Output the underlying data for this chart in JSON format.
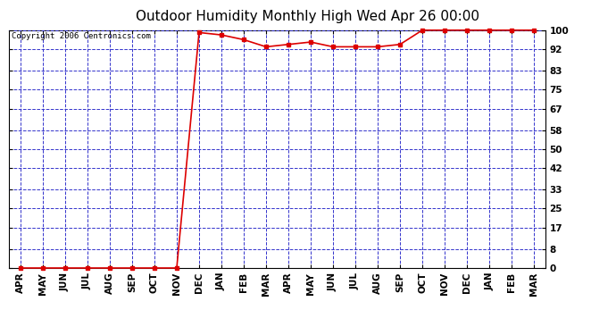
{
  "title": "Outdoor Humidity Monthly High Wed Apr 26 00:00",
  "copyright": "Copyright 2006 Centronics.com",
  "x_labels": [
    "APR",
    "MAY",
    "JUN",
    "JUL",
    "AUG",
    "SEP",
    "OCT",
    "NOV",
    "DEC",
    "JAN",
    "FEB",
    "MAR",
    "APR",
    "MAY",
    "JUN",
    "JUL",
    "AUG",
    "SEP",
    "OCT",
    "NOV",
    "DEC",
    "JAN",
    "FEB",
    "MAR"
  ],
  "y_values": [
    0,
    0,
    0,
    0,
    0,
    0,
    0,
    0,
    99,
    98,
    96,
    93,
    94,
    95,
    93,
    93,
    93,
    94,
    100,
    100,
    100,
    100,
    100,
    100
  ],
  "y_ticks": [
    0,
    8,
    17,
    25,
    33,
    42,
    50,
    58,
    67,
    75,
    83,
    92,
    100
  ],
  "ylim": [
    0,
    100
  ],
  "line_color": "#dd0000",
  "marker_color": "#dd0000",
  "grid_color": "#3333cc",
  "bg_color": "#ffffff",
  "fig_bg_color": "#ffffff",
  "outer_border_color": "#000000",
  "title_fontsize": 11,
  "copyright_fontsize": 6.5,
  "tick_fontsize": 7.5,
  "marker_size": 3
}
